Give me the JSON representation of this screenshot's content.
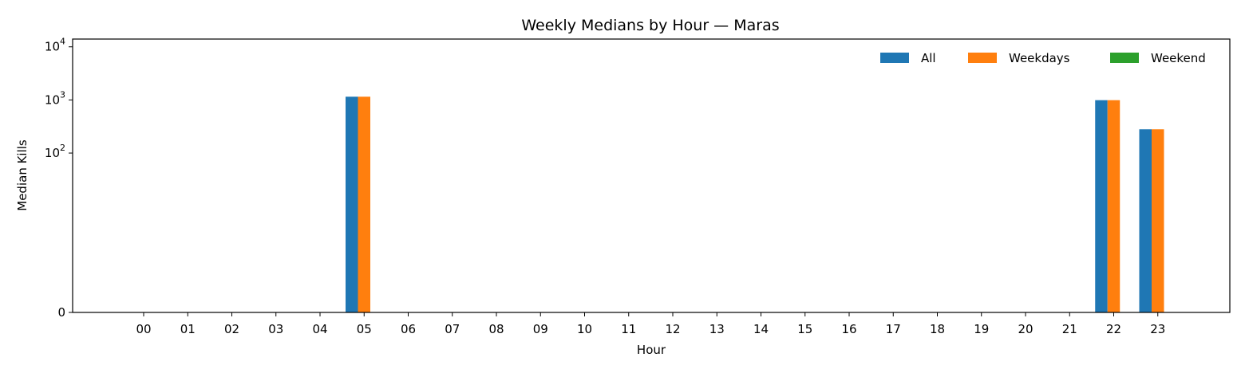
{
  "chart_data": {
    "type": "bar",
    "title": "Weekly Medians by Hour — Maras",
    "xlabel": "Hour",
    "ylabel": "Median Kills",
    "yscale": "symlog",
    "ylim": [
      0,
      14000
    ],
    "y_ticks": [
      {
        "value": 0,
        "base": "0",
        "exp": ""
      },
      {
        "value": 100,
        "base": "10",
        "exp": "2"
      },
      {
        "value": 1000,
        "base": "10",
        "exp": "3"
      },
      {
        "value": 10000,
        "base": "10",
        "exp": "4"
      }
    ],
    "grid": false,
    "legend_position": "top-right",
    "categories": [
      "00",
      "01",
      "02",
      "03",
      "04",
      "05",
      "06",
      "07",
      "08",
      "09",
      "10",
      "11",
      "12",
      "13",
      "14",
      "15",
      "16",
      "17",
      "18",
      "19",
      "20",
      "21",
      "22",
      "23"
    ],
    "series": [
      {
        "name": "All",
        "color": "#1f77b4",
        "values": [
          0,
          0,
          0,
          0,
          0,
          1150,
          0,
          0,
          0,
          0,
          0,
          0,
          0,
          0,
          0,
          0,
          0,
          0,
          0,
          0,
          0,
          0,
          990,
          280
        ]
      },
      {
        "name": "Weekdays",
        "color": "#ff7f0e",
        "values": [
          0,
          0,
          0,
          0,
          0,
          1150,
          0,
          0,
          0,
          0,
          0,
          0,
          0,
          0,
          0,
          0,
          0,
          0,
          0,
          0,
          0,
          0,
          990,
          280
        ]
      },
      {
        "name": "Weekend",
        "color": "#2ca02c",
        "values": [
          0,
          0,
          0,
          0,
          0,
          0,
          0,
          0,
          0,
          0,
          0,
          0,
          0,
          0,
          0,
          0,
          0,
          0,
          0,
          0,
          0,
          0,
          0,
          0
        ]
      }
    ]
  }
}
